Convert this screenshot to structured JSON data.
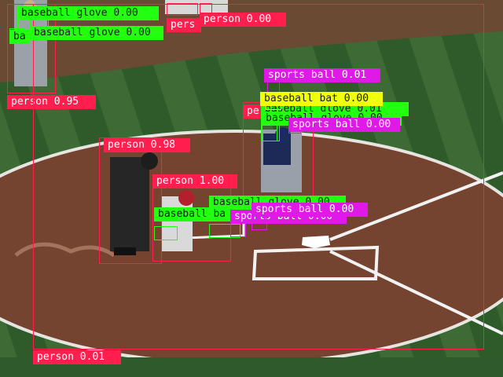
{
  "colors": {
    "person": "#ff1e4e",
    "baseball_glove": "#22ff11",
    "sports_ball": "#e01ae6",
    "baseball_bat": "#f0ff0a"
  },
  "detections": [
    {
      "label": "person 0.95",
      "cls": "person"
    },
    {
      "label": "person 0.98",
      "cls": "person"
    },
    {
      "label": "person 1.00",
      "cls": "person"
    },
    {
      "label": "person 0.01",
      "cls": "person"
    },
    {
      "label": "person 0.00",
      "cls": "person"
    },
    {
      "label": "pers",
      "cls": "person"
    },
    {
      "label": "pe",
      "cls": "person"
    },
    {
      "label": "baseball glove 0.00",
      "cls": "baseball_glove"
    },
    {
      "label": "baseball glove 0.00",
      "cls": "baseball_glove"
    },
    {
      "label": "ba",
      "cls": "baseball_glove"
    },
    {
      "label": "baseball glove 0.01",
      "cls": "baseball_glove"
    },
    {
      "label": "baseball glove 0.00",
      "cls": "baseball_glove"
    },
    {
      "label": "baseball glove 0.00",
      "cls": "baseball_glove"
    },
    {
      "label": "baseball ba",
      "cls": "baseball_glove"
    },
    {
      "label": "sports ball 0.01",
      "cls": "sports_ball"
    },
    {
      "label": "sports ball 0.00",
      "cls": "sports_ball"
    },
    {
      "label": "sports ball 0.00",
      "cls": "sports_ball"
    },
    {
      "label": "sports ball 0.00",
      "cls": "sports_ball"
    },
    {
      "label": "baseball bat 0.00",
      "cls": "baseball_bat"
    }
  ]
}
